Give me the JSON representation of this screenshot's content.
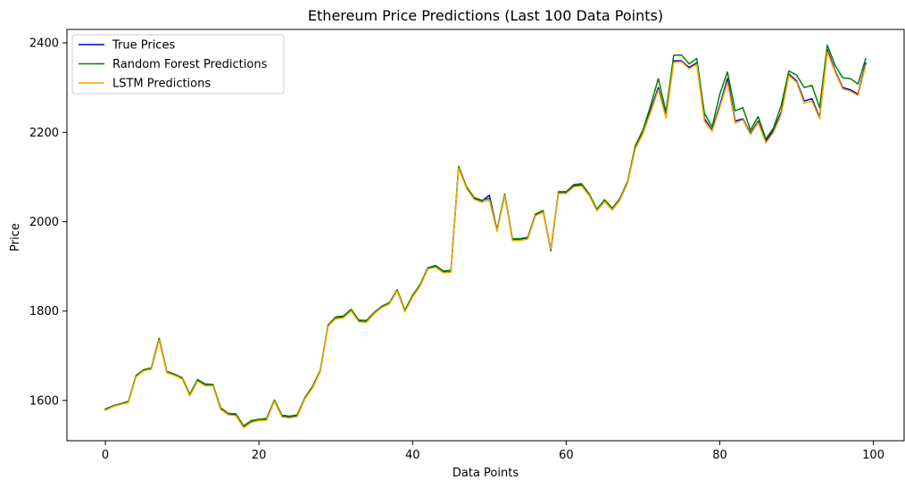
{
  "chart_data": {
    "type": "line",
    "title": "Ethereum Price Predictions (Last 100 Data Points)",
    "xlabel": "Data Points",
    "ylabel": "Price",
    "xlim": [
      -5,
      104
    ],
    "ylim": [
      1510,
      2430
    ],
    "xticks": [
      0,
      20,
      40,
      60,
      80,
      100
    ],
    "yticks": [
      1600,
      1800,
      2000,
      2200,
      2400
    ],
    "grid": false,
    "legend_position": "upper-left",
    "x": [
      0,
      1,
      2,
      3,
      4,
      5,
      6,
      7,
      8,
      9,
      10,
      11,
      12,
      13,
      14,
      15,
      16,
      17,
      18,
      19,
      20,
      21,
      22,
      23,
      24,
      25,
      26,
      27,
      28,
      29,
      30,
      31,
      32,
      33,
      34,
      35,
      36,
      37,
      38,
      39,
      40,
      41,
      42,
      43,
      44,
      45,
      46,
      47,
      48,
      49,
      50,
      51,
      52,
      53,
      54,
      55,
      56,
      57,
      58,
      59,
      60,
      61,
      62,
      63,
      64,
      65,
      66,
      67,
      68,
      69,
      70,
      71,
      72,
      73,
      74,
      75,
      76,
      77,
      78,
      79,
      80,
      81,
      82,
      83,
      84,
      85,
      86,
      87,
      88,
      89,
      90,
      91,
      92,
      93,
      94,
      95,
      96,
      97,
      98,
      99
    ],
    "series": [
      {
        "name": "True Prices",
        "color": "#0000cc",
        "values": [
          1580,
          1587,
          1592,
          1596,
          1655,
          1668,
          1672,
          1738,
          1664,
          1658,
          1650,
          1612,
          1645,
          1635,
          1635,
          1582,
          1570,
          1568,
          1541,
          1553,
          1557,
          1558,
          1600,
          1565,
          1563,
          1566,
          1606,
          1630,
          1667,
          1768,
          1785,
          1787,
          1802,
          1778,
          1777,
          1796,
          1810,
          1818,
          1847,
          1800,
          1833,
          1858,
          1896,
          1900,
          1888,
          1889,
          2122,
          2077,
          2052,
          2046,
          2059,
          1980,
          2060,
          1960,
          1960,
          1963,
          2015,
          2023,
          1935,
          2065,
          2065,
          2080,
          2082,
          2060,
          2026,
          2047,
          2028,
          2050,
          2088,
          2165,
          2200,
          2250,
          2300,
          2235,
          2360,
          2360,
          2345,
          2355,
          2230,
          2205,
          2260,
          2320,
          2225,
          2230,
          2198,
          2225,
          2180,
          2205,
          2245,
          2330,
          2315,
          2270,
          2275,
          2233,
          2385,
          2338,
          2300,
          2295,
          2285,
          2355
        ]
      },
      {
        "name": "Random Forest Predictions",
        "color": "#008000",
        "values": [
          1581,
          1588,
          1593,
          1598,
          1656,
          1669,
          1673,
          1739,
          1665,
          1659,
          1651,
          1614,
          1647,
          1637,
          1636,
          1584,
          1571,
          1570,
          1543,
          1555,
          1558,
          1560,
          1601,
          1567,
          1565,
          1568,
          1607,
          1632,
          1668,
          1769,
          1787,
          1789,
          1804,
          1780,
          1779,
          1797,
          1811,
          1819,
          1848,
          1802,
          1835,
          1860,
          1897,
          1902,
          1890,
          1891,
          2124,
          2079,
          2054,
          2048,
          2052,
          1982,
          2062,
          1962,
          1962,
          1965,
          2017,
          2025,
          1938,
          2067,
          2067,
          2083,
          2085,
          2062,
          2028,
          2049,
          2030,
          2052,
          2090,
          2170,
          2205,
          2260,
          2320,
          2245,
          2372,
          2373,
          2353,
          2365,
          2242,
          2212,
          2285,
          2335,
          2248,
          2255,
          2205,
          2235,
          2185,
          2210,
          2260,
          2337,
          2328,
          2300,
          2305,
          2255,
          2395,
          2350,
          2322,
          2320,
          2308,
          2365
        ]
      },
      {
        "name": "LSTM Predictions",
        "color": "#ffa500",
        "values": [
          1578,
          1586,
          1591,
          1595,
          1653,
          1666,
          1670,
          1735,
          1662,
          1656,
          1648,
          1610,
          1643,
          1633,
          1633,
          1580,
          1568,
          1566,
          1539,
          1551,
          1555,
          1556,
          1598,
          1563,
          1561,
          1564,
          1604,
          1628,
          1665,
          1766,
          1783,
          1785,
          1800,
          1776,
          1775,
          1794,
          1808,
          1816,
          1845,
          1798,
          1831,
          1856,
          1894,
          1898,
          1886,
          1887,
          2120,
          2075,
          2050,
          2044,
          2048,
          1978,
          2058,
          1958,
          1958,
          1961,
          2013,
          2021,
          1938,
          2063,
          2063,
          2078,
          2080,
          2058,
          2024,
          2045,
          2026,
          2048,
          2086,
          2163,
          2197,
          2245,
          2295,
          2232,
          2356,
          2358,
          2342,
          2352,
          2225,
          2202,
          2255,
          2312,
          2220,
          2228,
          2195,
          2222,
          2176,
          2200,
          2240,
          2327,
          2312,
          2265,
          2270,
          2230,
          2380,
          2335,
          2297,
          2292,
          2282,
          2350
        ]
      }
    ]
  }
}
